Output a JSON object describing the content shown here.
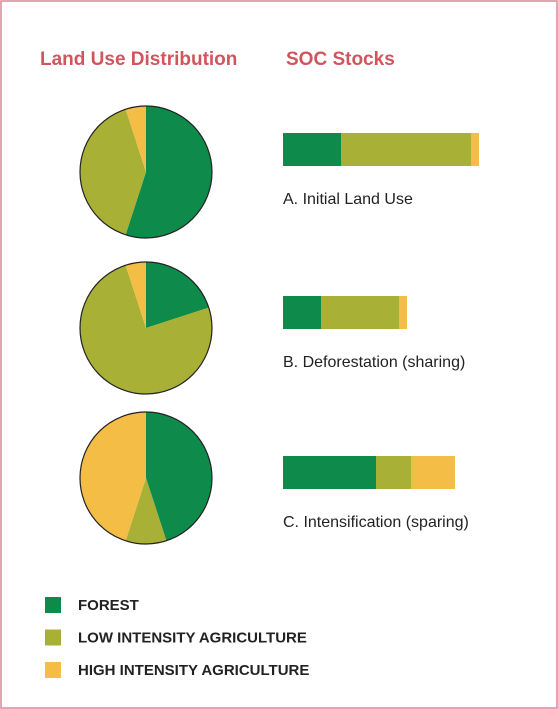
{
  "chart_data": [
    {
      "type": "pie",
      "title": "Land Use Distribution",
      "series": [
        {
          "name": "FOREST",
          "color": "#0e8a4a",
          "values": [
            55,
            20,
            45
          ]
        },
        {
          "name": "LOW INTENSITY AGRICULTURE",
          "color": "#a9b036",
          "values": [
            40,
            75,
            10
          ]
        },
        {
          "name": "HIGH INTENSITY AGRICULTURE",
          "color": "#f4bd45",
          "values": [
            5,
            5,
            45
          ]
        }
      ]
    },
    {
      "type": "bar",
      "title": "SOC Stocks",
      "categories": [
        "A. Initial Land Use",
        "B. Deforestation (sharing)",
        "C. Intensification (sparing)"
      ],
      "series": [
        {
          "color": "#0e8a4a",
          "values": [
            58,
            38,
            93
          ]
        },
        {
          "color": "#a9b036",
          "values": [
            130,
            78,
            35
          ]
        },
        {
          "color": "#f4bd45",
          "values": [
            8,
            8,
            44
          ]
        }
      ]
    }
  ]
}
